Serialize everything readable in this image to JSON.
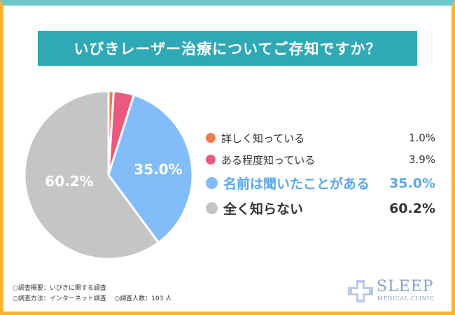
{
  "title": "いびきレーザー治療についてご存知ですか？",
  "chart_data": {
    "type": "pie",
    "title": "いびきレーザー治療についてご存知ですか？",
    "slices": [
      {
        "label": "詳しく知っている",
        "value": 1.0,
        "display": "1.0%",
        "color": "#f07a4a"
      },
      {
        "label": "ある程度知っている",
        "value": 3.9,
        "display": "3.9%",
        "color": "#ea5a7e"
      },
      {
        "label": "名前は聞いたことがある",
        "value": 35.0,
        "display": "35.0%",
        "color": "#82bdfa"
      },
      {
        "label": "全く知らない",
        "value": 60.2,
        "display": "60.2%",
        "color": "#c5c5c5"
      }
    ],
    "slice_labels": {
      "blue": "35.0%",
      "gray": "60.2%"
    }
  },
  "legend": [
    {
      "label": "詳しく知っている",
      "value": "1.0%"
    },
    {
      "label": "ある程度知っている",
      "value": "3.9%"
    },
    {
      "label": "名前は聞いたことがある",
      "value": "35.0%"
    },
    {
      "label": "全く知らない",
      "value": "60.2%"
    }
  ],
  "notes": {
    "line1": "○調査概要：いびきに関する調査",
    "line2a": "○調査方法：インターネット調査",
    "line2b": "○調査人数：103 人"
  },
  "logo": {
    "word": "SLEEP",
    "sub": "MEDICAL CLINIC"
  }
}
